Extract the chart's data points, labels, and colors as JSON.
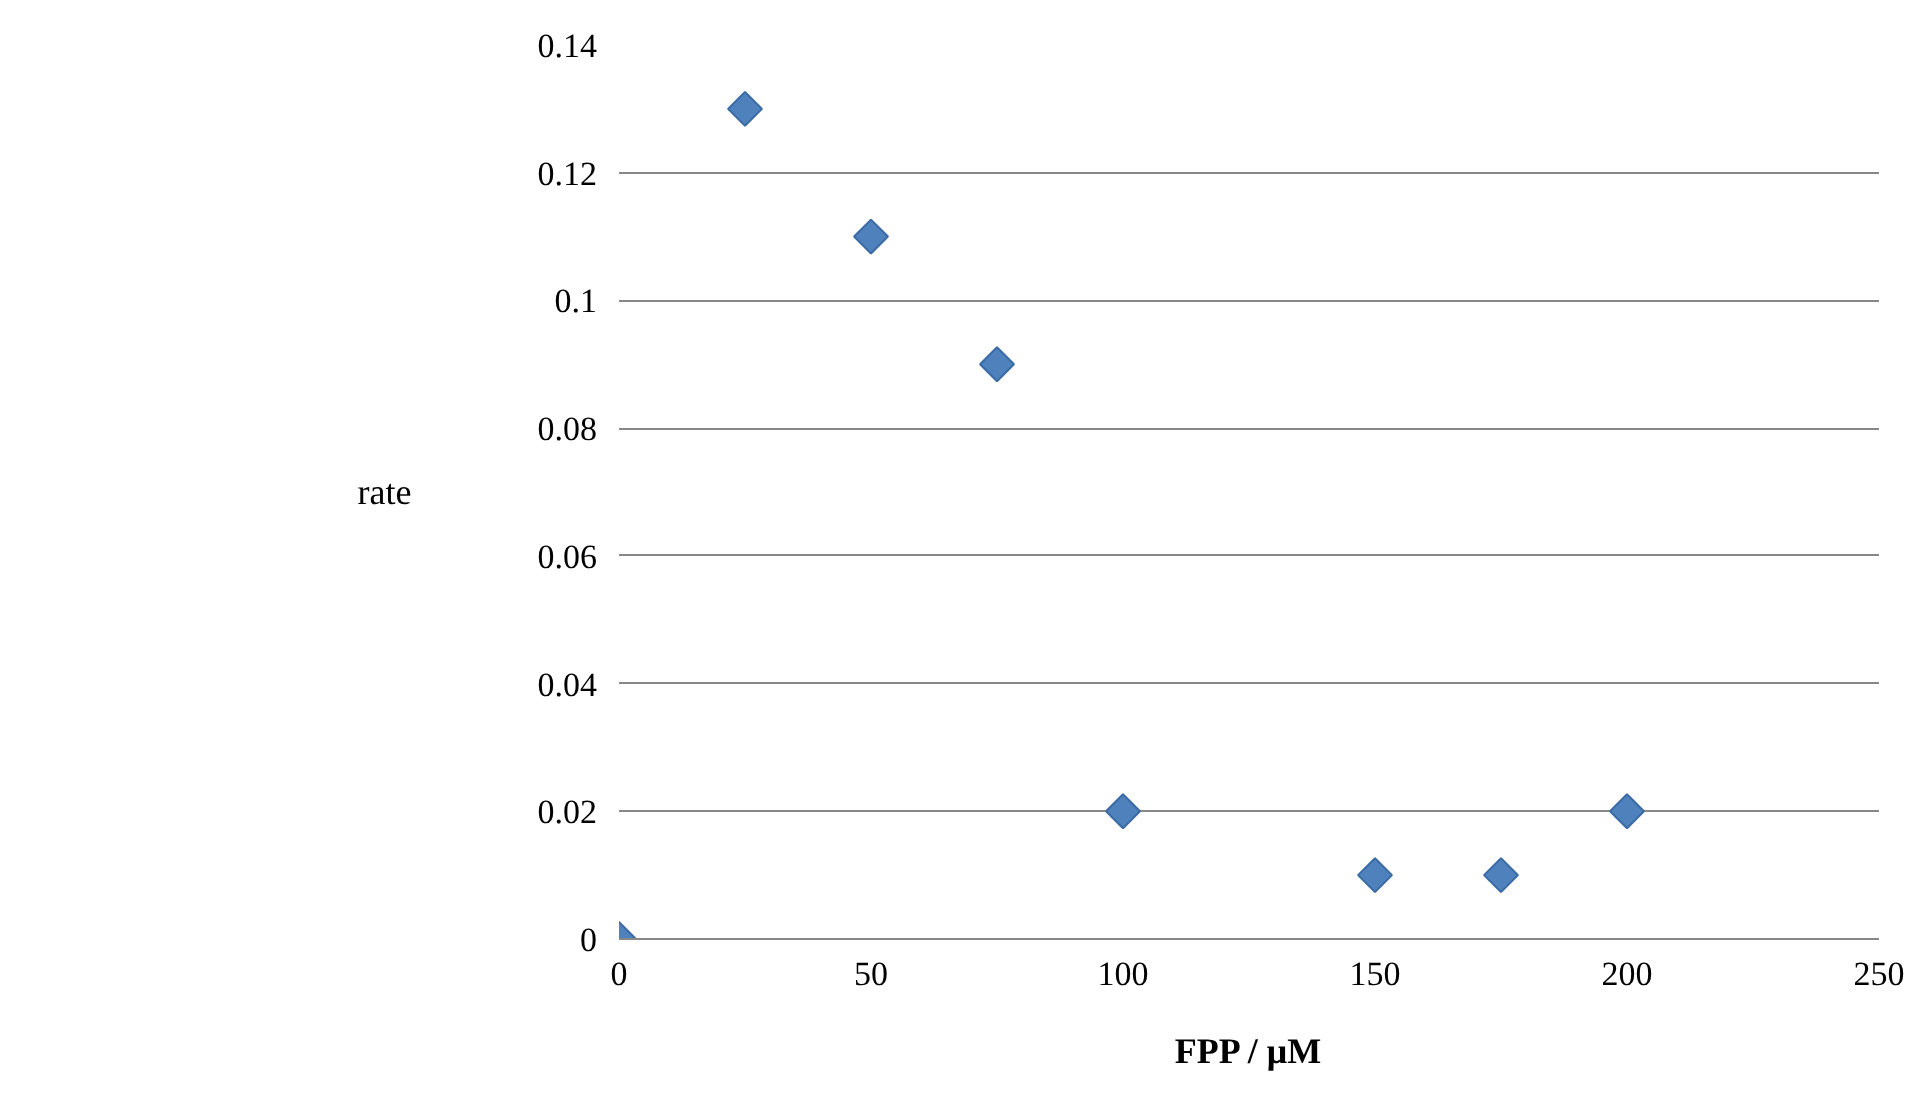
{
  "chart_data": {
    "type": "scatter",
    "xlabel": "FPP / μM",
    "ylabel": "rate",
    "x": [
      0,
      25,
      50,
      75,
      100,
      150,
      175,
      200
    ],
    "series": [
      {
        "color": "#4f81bd",
        "values": [
          0,
          0.13,
          0.11,
          0.09,
          0.02,
          0.01,
          0.01,
          0.02
        ]
      }
    ],
    "xlim": [
      0,
      250
    ],
    "xticks": [
      0,
      50,
      100,
      150,
      200,
      250
    ],
    "ylim": [
      0,
      0.14
    ],
    "yticks": [
      0,
      0.02,
      0.04,
      0.06,
      0.08,
      0.1,
      0.12,
      0.14
    ],
    "grid": "y",
    "marker": "diamond"
  }
}
